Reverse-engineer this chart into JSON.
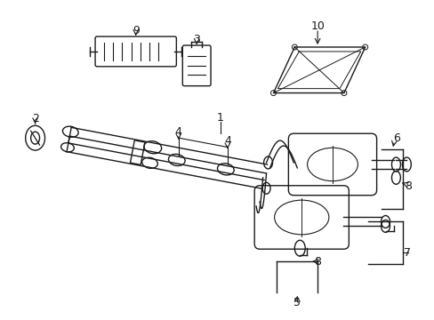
{
  "bg_color": "#ffffff",
  "line_color": "#1a1a1a",
  "lw": 1.0,
  "figsize": [
    4.89,
    3.6
  ],
  "dpi": 100
}
